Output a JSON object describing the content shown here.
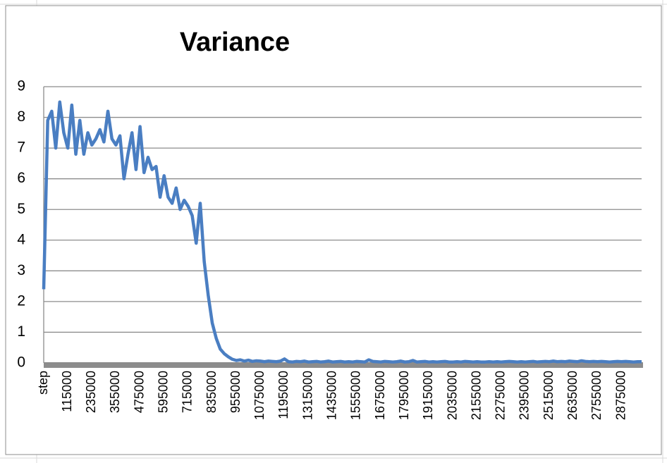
{
  "chart_data": {
    "type": "line",
    "title": "Variance",
    "categories": [
      "step",
      null,
      null,
      null,
      null,
      null,
      "115000",
      null,
      null,
      null,
      null,
      null,
      "235000",
      null,
      null,
      null,
      null,
      null,
      "355000",
      null,
      null,
      null,
      null,
      null,
      "475000",
      null,
      null,
      null,
      null,
      null,
      "595000",
      null,
      null,
      null,
      null,
      null,
      "715000",
      null,
      null,
      null,
      null,
      null,
      "835000",
      null,
      null,
      null,
      null,
      null,
      "955000",
      null,
      null,
      null,
      null,
      null,
      "1075000",
      null,
      null,
      null,
      null,
      null,
      "1195000",
      null,
      null,
      null,
      null,
      null,
      "1315000",
      null,
      null,
      null,
      null,
      null,
      "1435000",
      null,
      null,
      null,
      null,
      null,
      "1555000",
      null,
      null,
      null,
      null,
      null,
      "1675000",
      null,
      null,
      null,
      null,
      null,
      "1795000",
      null,
      null,
      null,
      null,
      null,
      "1915000",
      null,
      null,
      null,
      null,
      null,
      "2035000",
      null,
      null,
      null,
      null,
      null,
      "2155000",
      null,
      null,
      null,
      null,
      null,
      "2275000",
      null,
      null,
      null,
      null,
      null,
      "2395000",
      null,
      null,
      null,
      null,
      null,
      "2515000",
      null,
      null,
      null,
      null,
      null,
      "2635000",
      null,
      null,
      null,
      null,
      null,
      "2755000",
      null,
      null,
      null,
      null,
      null,
      "2875000",
      null,
      null,
      null,
      null,
      null
    ],
    "values": [
      2.4,
      7.9,
      8.2,
      7.0,
      8.5,
      7.5,
      7.0,
      8.4,
      6.8,
      7.9,
      6.8,
      7.5,
      7.1,
      7.3,
      7.6,
      7.2,
      8.2,
      7.3,
      7.1,
      7.4,
      6.0,
      6.8,
      7.5,
      6.3,
      7.7,
      6.2,
      6.7,
      6.3,
      6.4,
      5.4,
      6.1,
      5.4,
      5.2,
      5.7,
      5.0,
      5.3,
      5.1,
      4.8,
      3.9,
      5.2,
      3.3,
      2.2,
      1.3,
      0.8,
      0.45,
      0.3,
      0.2,
      0.12,
      0.08,
      0.1,
      0.06,
      0.09,
      0.05,
      0.07,
      0.06,
      0.04,
      0.06,
      0.05,
      0.04,
      0.06,
      0.13,
      0.04,
      0.03,
      0.05,
      0.04,
      0.06,
      0.03,
      0.04,
      0.05,
      0.03,
      0.04,
      0.06,
      0.03,
      0.04,
      0.05,
      0.03,
      0.04,
      0.03,
      0.05,
      0.04,
      0.03,
      0.1,
      0.05,
      0.04,
      0.03,
      0.05,
      0.04,
      0.03,
      0.04,
      0.06,
      0.03,
      0.04,
      0.08,
      0.03,
      0.04,
      0.05,
      0.03,
      0.04,
      0.03,
      0.04,
      0.05,
      0.03,
      0.03,
      0.04,
      0.03,
      0.05,
      0.04,
      0.03,
      0.04,
      0.03,
      0.03,
      0.04,
      0.03,
      0.04,
      0.03,
      0.04,
      0.05,
      0.04,
      0.03,
      0.04,
      0.03,
      0.04,
      0.05,
      0.03,
      0.04,
      0.05,
      0.04,
      0.06,
      0.04,
      0.05,
      0.04,
      0.06,
      0.05,
      0.04,
      0.07,
      0.05,
      0.04,
      0.05,
      0.04,
      0.05,
      0.04,
      0.03,
      0.04,
      0.05,
      0.04,
      0.05,
      0.04,
      0.03,
      0.04,
      0.04
    ],
    "color": "#4a7ec2",
    "ylim": [
      0,
      9
    ],
    "yticks": [
      0,
      1,
      2,
      3,
      4,
      5,
      6,
      7,
      8,
      9
    ],
    "grid": true
  }
}
